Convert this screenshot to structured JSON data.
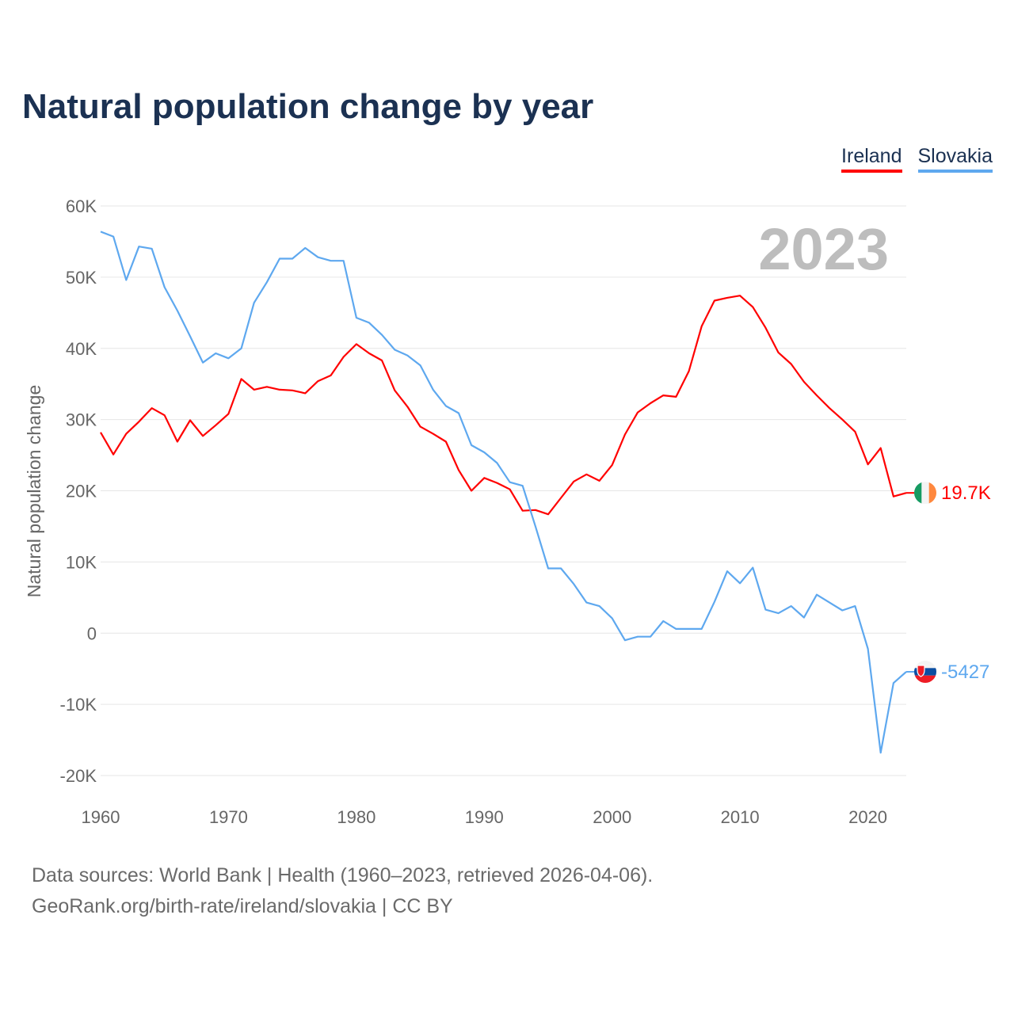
{
  "chart_data": {
    "type": "line",
    "title": "Natural population change by year",
    "ylabel": "Natural population change",
    "xlabel": "",
    "ylim": [
      -20000,
      60000
    ],
    "xlim": [
      1960,
      2023
    ],
    "y_ticks": [
      {
        "value": 60000,
        "label": "60K"
      },
      {
        "value": 50000,
        "label": "50K"
      },
      {
        "value": 40000,
        "label": "40K"
      },
      {
        "value": 30000,
        "label": "30K"
      },
      {
        "value": 20000,
        "label": "20K"
      },
      {
        "value": 10000,
        "label": "10K"
      },
      {
        "value": 0,
        "label": "0"
      },
      {
        "value": -10000,
        "label": "-10K"
      },
      {
        "value": -20000,
        "label": "-20K"
      }
    ],
    "x_ticks": [
      1960,
      1970,
      1980,
      1990,
      2000,
      2010,
      2020
    ],
    "grid": true,
    "legend_position": "top-right",
    "year_annotation": "2023",
    "x": [
      1960,
      1961,
      1962,
      1963,
      1964,
      1965,
      1966,
      1967,
      1968,
      1969,
      1970,
      1971,
      1972,
      1973,
      1974,
      1975,
      1976,
      1977,
      1978,
      1979,
      1980,
      1981,
      1982,
      1983,
      1984,
      1985,
      1986,
      1987,
      1988,
      1989,
      1990,
      1991,
      1992,
      1993,
      1994,
      1995,
      1996,
      1997,
      1998,
      1999,
      2000,
      2001,
      2002,
      2003,
      2004,
      2005,
      2006,
      2007,
      2008,
      2009,
      2010,
      2011,
      2012,
      2013,
      2014,
      2015,
      2016,
      2017,
      2018,
      2019,
      2020,
      2021,
      2022,
      2023
    ],
    "series": [
      {
        "name": "Ireland",
        "color": "#ff0000",
        "end_label": "19.7K",
        "flag": "ireland-flag",
        "values": [
          28200,
          25100,
          28000,
          29700,
          31600,
          30600,
          26900,
          29900,
          27700,
          29200,
          30800,
          35700,
          34200,
          34600,
          34200,
          34100,
          33700,
          35400,
          36200,
          38800,
          40600,
          39300,
          38300,
          34100,
          31800,
          29000,
          28000,
          26900,
          22900,
          20000,
          21800,
          21100,
          20200,
          17200,
          17300,
          16700,
          19000,
          21300,
          22300,
          21400,
          23600,
          27900,
          31000,
          32300,
          33400,
          33200,
          36800,
          43100,
          46700,
          47100,
          47400,
          45800,
          42900,
          39400,
          37800,
          35300,
          33400,
          31600,
          30000,
          28300,
          23700,
          26000,
          19200,
          19700
        ]
      },
      {
        "name": "Slovakia",
        "color": "#5ea8ef",
        "end_label": "-5427",
        "flag": "slovakia-flag",
        "values": [
          56400,
          55700,
          49600,
          54300,
          54000,
          48600,
          45300,
          41700,
          38000,
          39300,
          38600,
          40000,
          46400,
          49300,
          52600,
          52600,
          54100,
          52800,
          52300,
          52300,
          44300,
          43600,
          41900,
          39800,
          39000,
          37600,
          34200,
          31900,
          30900,
          26400,
          25400,
          23900,
          21200,
          20700,
          15000,
          9100,
          9100,
          6900,
          4300,
          3800,
          2100,
          -1000,
          -500,
          -500,
          1700,
          600,
          600,
          600,
          4400,
          8700,
          7000,
          9200,
          3300,
          2800,
          3800,
          2200,
          5400,
          4300,
          3200,
          3800,
          -2200,
          -16800,
          -7000,
          -5427
        ]
      }
    ]
  },
  "footer": {
    "line1": "Data sources: World Bank | Health (1960–2023, retrieved 2026-04-06).",
    "line2": "GeoRank.org/birth-rate/ireland/slovakia | CC BY"
  }
}
